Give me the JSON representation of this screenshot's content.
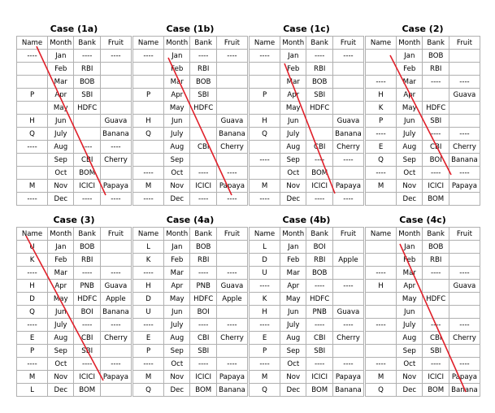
{
  "headers": [
    "Name",
    "Month",
    "Bank",
    "Fruit"
  ],
  "cases": [
    {
      "title": "Case (1a)",
      "rows": [
        [
          "----",
          "Jan",
          "----",
          "----"
        ],
        [
          "",
          "Feb",
          "RBI",
          ""
        ],
        [
          "",
          "Mar",
          "BOB",
          ""
        ],
        [
          "P",
          "Apr",
          "SBI",
          ""
        ],
        [
          "",
          "May",
          "HDFC",
          ""
        ],
        [
          "H",
          "Jun",
          "",
          "Guava"
        ],
        [
          "Q",
          "July",
          "",
          "Banana"
        ],
        [
          "----",
          "Aug",
          "----",
          "----"
        ],
        [
          "",
          "Sep",
          "CBI",
          "Cherry"
        ],
        [
          "",
          "Oct",
          "BOM",
          ""
        ],
        [
          "M",
          "Nov",
          "ICICI",
          "Papaya"
        ],
        [
          "----",
          "Dec",
          "----",
          "----"
        ]
      ]
    },
    {
      "title": "Case (1b)",
      "rows": [
        [
          "----",
          "Jan",
          "----",
          "----"
        ],
        [
          "",
          "Feb",
          "RBI",
          ""
        ],
        [
          "",
          "Mar",
          "BOB",
          ""
        ],
        [
          "P",
          "Apr",
          "SBI",
          ""
        ],
        [
          "",
          "May",
          "HDFC",
          ""
        ],
        [
          "H",
          "Jun",
          "",
          "Guava"
        ],
        [
          "Q",
          "July",
          "",
          "Banana"
        ],
        [
          "",
          "Aug",
          "CBI",
          "Cherry"
        ],
        [
          "",
          "Sep",
          "",
          ""
        ],
        [
          "----",
          "Oct",
          "----",
          "----"
        ],
        [
          "M",
          "Nov",
          "ICICI",
          "Papaya"
        ],
        [
          "----",
          "Dec",
          "----",
          "----"
        ]
      ]
    },
    {
      "title": "Case (1c)",
      "rows": [
        [
          "----",
          "Jan",
          "----",
          "----"
        ],
        [
          "",
          "Feb",
          "RBI",
          ""
        ],
        [
          "",
          "Mar",
          "BOB",
          ""
        ],
        [
          "P",
          "Apr",
          "SBI",
          ""
        ],
        [
          "",
          "May",
          "HDFC",
          ""
        ],
        [
          "H",
          "Jun",
          "",
          "Guava"
        ],
        [
          "Q",
          "July",
          "",
          "Banana"
        ],
        [
          "",
          "Aug",
          "CBI",
          "Cherry"
        ],
        [
          "----",
          "Sep",
          "----",
          "----"
        ],
        [
          "",
          "Oct",
          "BOM",
          ""
        ],
        [
          "M",
          "Nov",
          "ICICI",
          "Papaya"
        ],
        [
          "----",
          "Dec",
          "----",
          "----"
        ]
      ]
    },
    {
      "title": "Case (2)",
      "rows": [
        [
          "",
          "Jan",
          "BOB",
          ""
        ],
        [
          "",
          "Feb",
          "RBI",
          ""
        ],
        [
          "----",
          "Mar",
          "----",
          "----"
        ],
        [
          "H",
          "Apr",
          "",
          "Guava"
        ],
        [
          "K",
          "May",
          "HDFC",
          ""
        ],
        [
          "P",
          "Jun",
          "SBI",
          ""
        ],
        [
          "----",
          "July",
          "----",
          "----"
        ],
        [
          "E",
          "Aug",
          "CBI",
          "Cherry"
        ],
        [
          "Q",
          "Sep",
          "BOI",
          "Banana"
        ],
        [
          "----",
          "Oct",
          "----",
          "----"
        ],
        [
          "M",
          "Nov",
          "ICICI",
          "Papaya"
        ],
        [
          "",
          "Dec",
          "BOM",
          ""
        ]
      ]
    },
    {
      "title": "Case (3)",
      "rows": [
        [
          "U",
          "Jan",
          "BOB",
          ""
        ],
        [
          "K",
          "Feb",
          "RBI",
          ""
        ],
        [
          "----",
          "Mar",
          "----",
          "----"
        ],
        [
          "H",
          "Apr",
          "PNB",
          "Guava"
        ],
        [
          "D",
          "May",
          "HDFC",
          "Apple"
        ],
        [
          "Q",
          "Jun",
          "BOI",
          "Banana"
        ],
        [
          "----",
          "July",
          "----",
          "----"
        ],
        [
          "E",
          "Aug",
          "CBI",
          "Cherry"
        ],
        [
          "P",
          "Sep",
          "SBI",
          ""
        ],
        [
          "----",
          "Oct",
          "----",
          "----"
        ],
        [
          "M",
          "Nov",
          "ICICI",
          "Papaya"
        ],
        [
          "L",
          "Dec",
          "BOM",
          ""
        ]
      ]
    },
    {
      "title": "Case (4a)",
      "rows": [
        [
          "L",
          "Jan",
          "BOB",
          ""
        ],
        [
          "K",
          "Feb",
          "RBI",
          ""
        ],
        [
          "----",
          "Mar",
          "----",
          "----"
        ],
        [
          "H",
          "Apr",
          "PNB",
          "Guava"
        ],
        [
          "D",
          "May",
          "HDFC",
          "Apple"
        ],
        [
          "U",
          "Jun",
          "BOI",
          ""
        ],
        [
          "----",
          "July",
          "----",
          "----"
        ],
        [
          "E",
          "Aug",
          "CBI",
          "Cherry"
        ],
        [
          "P",
          "Sep",
          "SBI",
          ""
        ],
        [
          "----",
          "Oct",
          "----",
          "----"
        ],
        [
          "M",
          "Nov",
          "ICICI",
          "Papaya"
        ],
        [
          "Q",
          "Dec",
          "BOM",
          "Banana"
        ]
      ]
    },
    {
      "title": "Case (4b)",
      "rows": [
        [
          "L",
          "Jan",
          "BOI",
          ""
        ],
        [
          "D",
          "Feb",
          "RBI",
          "Apple"
        ],
        [
          "U",
          "Mar",
          "BOB",
          ""
        ],
        [
          "----",
          "Apr",
          "----",
          "----"
        ],
        [
          "K",
          "May",
          "HDFC",
          ""
        ],
        [
          "H",
          "Jun",
          "PNB",
          "Guava"
        ],
        [
          "----",
          "July",
          "----",
          "----"
        ],
        [
          "E",
          "Aug",
          "CBI",
          "Cherry"
        ],
        [
          "P",
          "Sep",
          "SBI",
          ""
        ],
        [
          "----",
          "Oct",
          "----",
          "----"
        ],
        [
          "M",
          "Nov",
          "ICICI",
          "Papaya"
        ],
        [
          "Q",
          "Dec",
          "BOM",
          "Banana"
        ]
      ]
    },
    {
      "title": "Case (4c)",
      "rows": [
        [
          "",
          "Jan",
          "BOB",
          ""
        ],
        [
          "",
          "Feb",
          "RBI",
          ""
        ],
        [
          "----",
          "Mar",
          "----",
          "----"
        ],
        [
          "H",
          "Apr",
          "",
          "Guava"
        ],
        [
          "",
          "May",
          "HDFC",
          ""
        ],
        [
          "",
          "Jun",
          "",
          ""
        ],
        [
          "----",
          "July",
          "----",
          "----"
        ],
        [
          "",
          "Aug",
          "CBI",
          "Cherry"
        ],
        [
          "",
          "Sep",
          "SBI",
          ""
        ],
        [
          "----",
          "Oct",
          "----",
          "----"
        ],
        [
          "M",
          "Nov",
          "ICICI",
          "Papaya"
        ],
        [
          "Q",
          "Dec",
          "BOM",
          "Banana"
        ]
      ]
    }
  ],
  "strike_color": "#e0202a"
}
